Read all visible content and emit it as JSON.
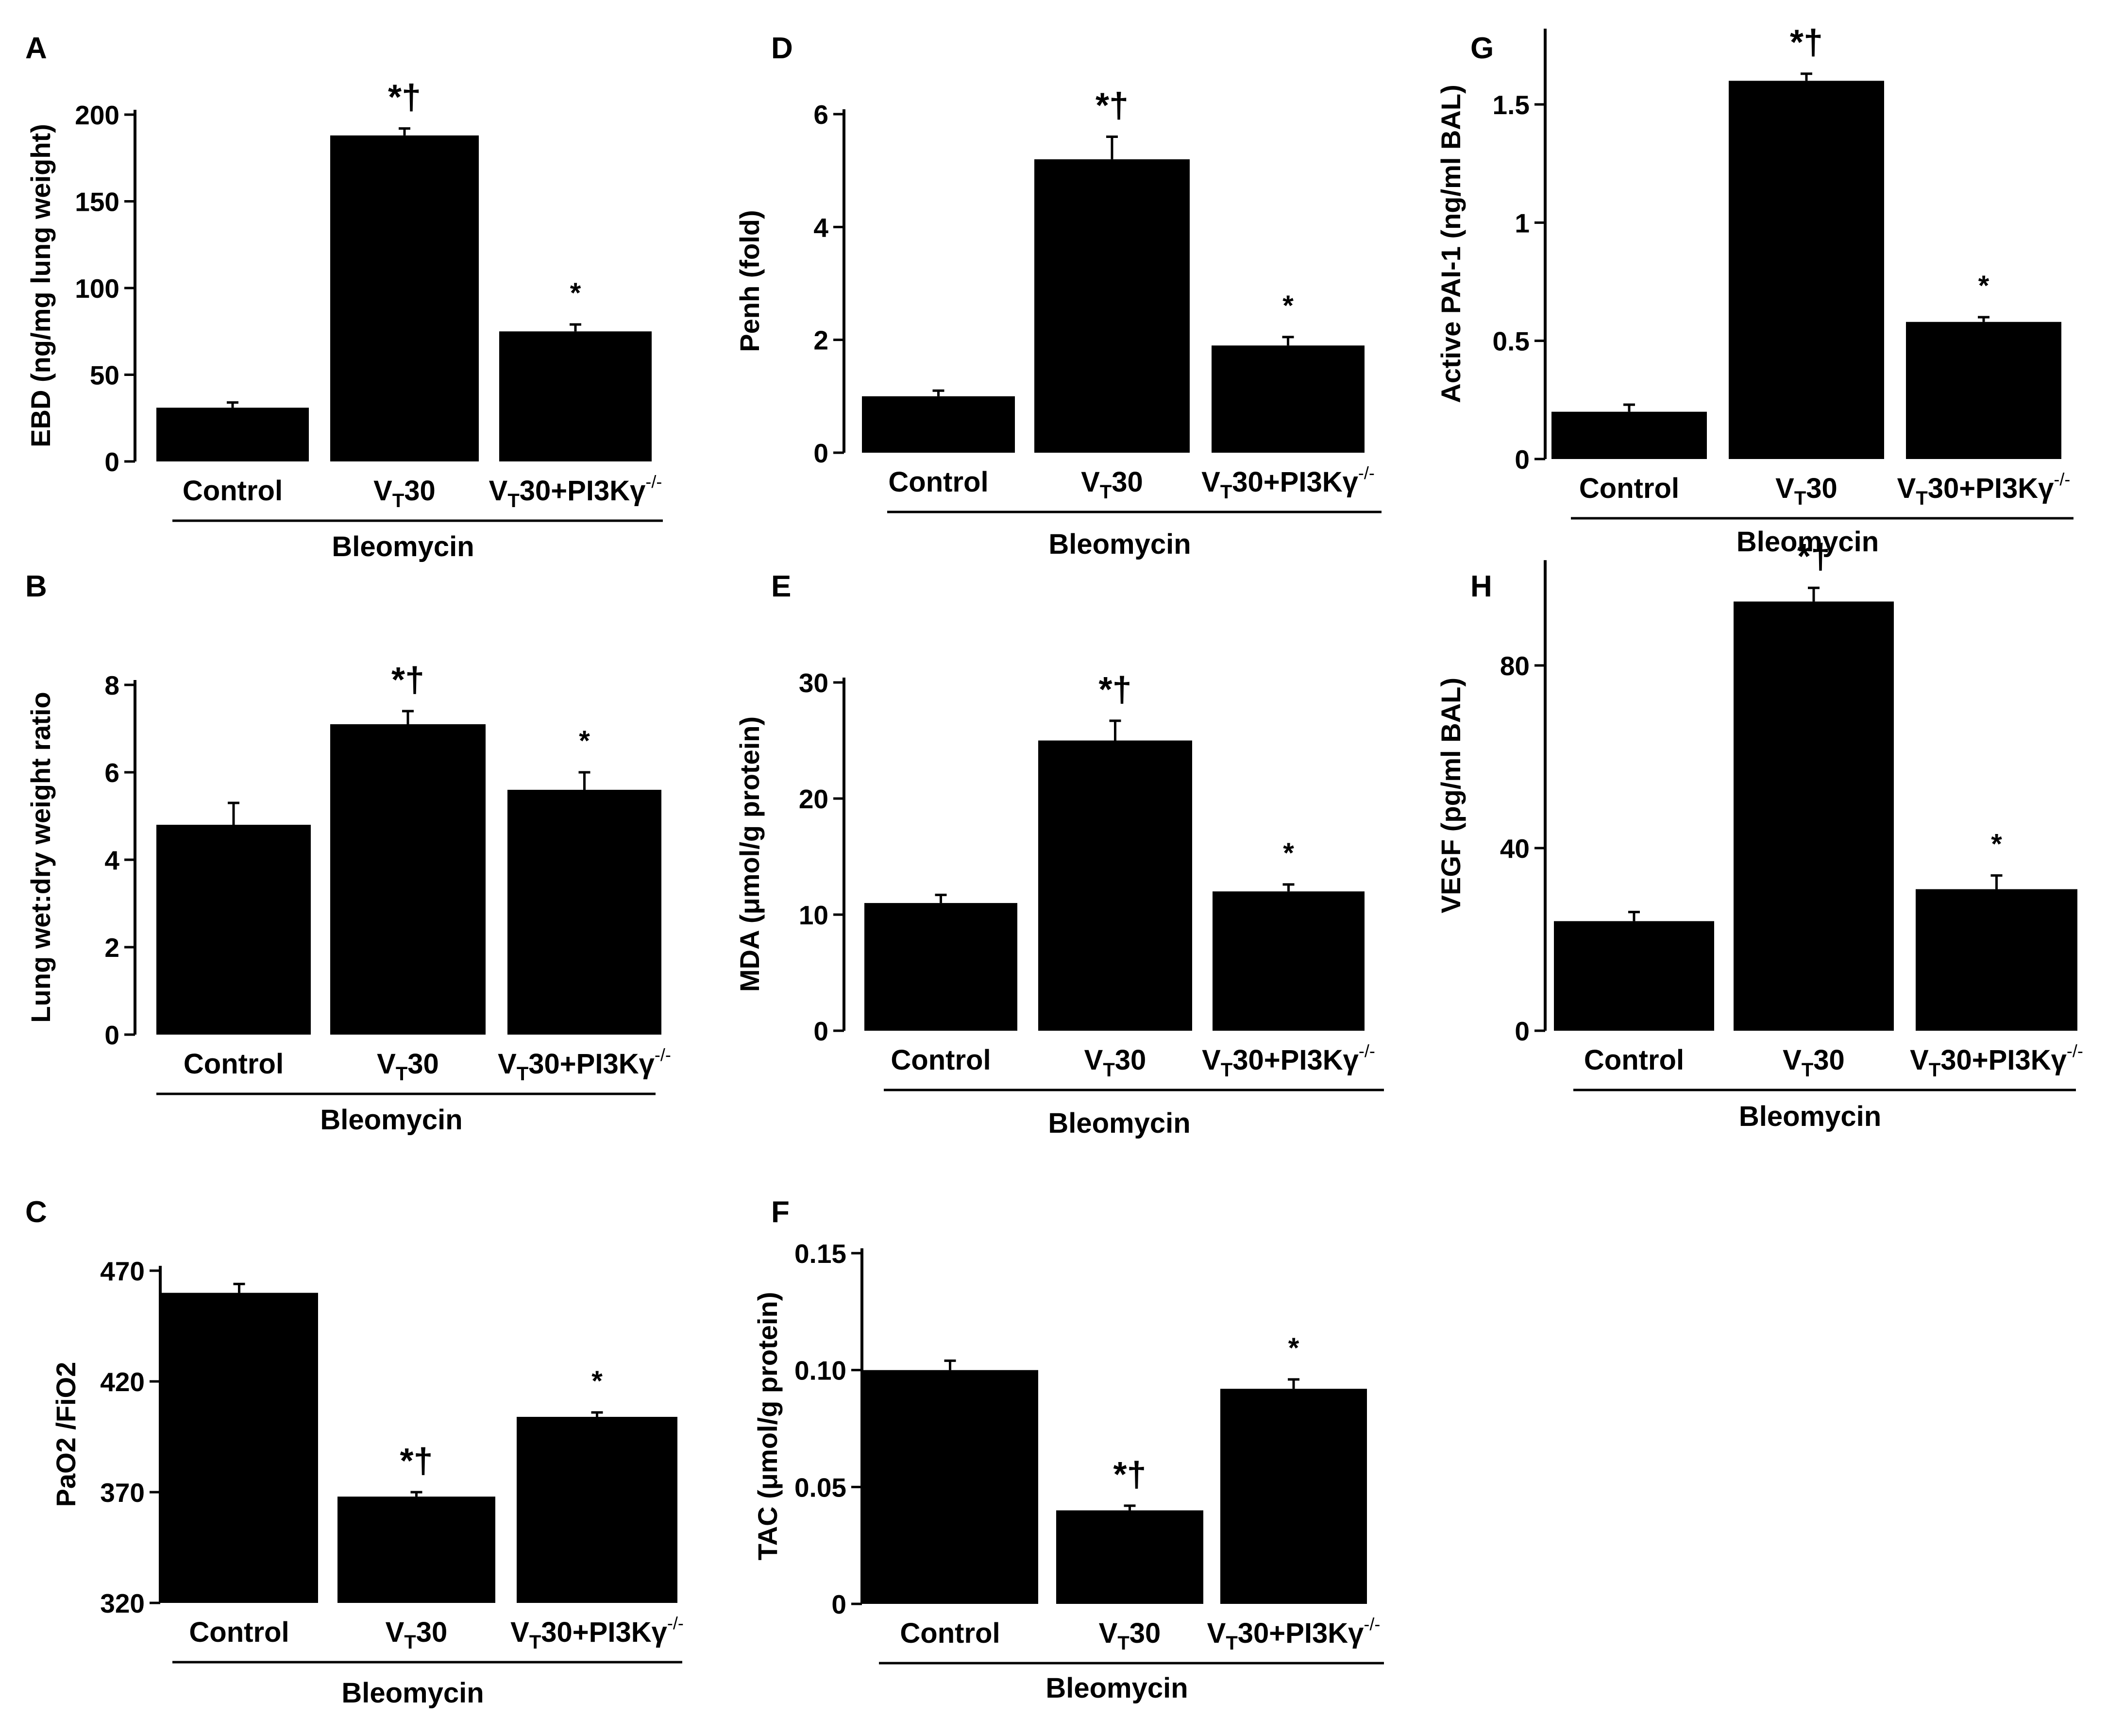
{
  "figure": {
    "colors": {
      "bar": "#000000",
      "axis": "#000000",
      "background": "#ffffff"
    },
    "category_labels": [
      {
        "main": "Control",
        "sub": "",
        "tail": "",
        "sup": ""
      },
      {
        "main": "V",
        "sub": "T",
        "tail": "30",
        "sup": ""
      },
      {
        "main": "V",
        "sub": "T",
        "tail": "30+PI3Kγ",
        "sup": "-/-"
      }
    ],
    "group_label": "Bleomycin"
  },
  "chart_data": [
    {
      "panel": "A",
      "type": "bar",
      "ylabel": "EBD (ng/mg lung weight)",
      "categories": [
        "Control",
        "VT30",
        "VT30+PI3Kγ-/-"
      ],
      "values": [
        31,
        188,
        75
      ],
      "errors": [
        3,
        4,
        4
      ],
      "markers": [
        "",
        "*†",
        "*"
      ],
      "ylim": [
        0,
        200
      ],
      "yticks": [
        0,
        50,
        100,
        150,
        200
      ],
      "ytick_labels": [
        "0",
        "50",
        "100",
        "150",
        "200"
      ],
      "group_label": "Bleomycin"
    },
    {
      "panel": "B",
      "type": "bar",
      "ylabel": "Lung wet:dry weight ratio",
      "categories": [
        "Control",
        "VT30",
        "VT30+PI3Kγ-/-"
      ],
      "values": [
        4.8,
        7.1,
        5.6
      ],
      "errors": [
        0.5,
        0.3,
        0.4
      ],
      "markers": [
        "",
        "*†",
        "*"
      ],
      "ylim": [
        0,
        8
      ],
      "yticks": [
        0,
        2,
        4,
        6,
        8
      ],
      "ytick_labels": [
        "0",
        "2",
        "4",
        "6",
        "8"
      ],
      "group_label": "Bleomycin"
    },
    {
      "panel": "C",
      "type": "bar",
      "ylabel": "PaO2 /FiO2",
      "categories": [
        "Control",
        "VT30",
        "VT30+PI3Kγ-/-"
      ],
      "values": [
        460,
        368,
        404
      ],
      "errors": [
        4,
        2,
        2
      ],
      "markers": [
        "",
        "*†",
        "*"
      ],
      "ylim": [
        320,
        470
      ],
      "yticks": [
        320,
        370,
        420,
        470
      ],
      "ytick_labels": [
        "320",
        "370",
        "420",
        "470"
      ],
      "group_label": "Bleomycin"
    },
    {
      "panel": "D",
      "type": "bar",
      "ylabel": "Penh (fold)",
      "categories": [
        "Control",
        "VT30",
        "VT30+PI3Kγ-/-"
      ],
      "values": [
        1.0,
        5.2,
        1.9
      ],
      "errors": [
        0.1,
        0.4,
        0.15
      ],
      "markers": [
        "",
        "*†",
        "*"
      ],
      "ylim": [
        0,
        6
      ],
      "yticks": [
        0,
        2,
        4,
        6
      ],
      "ytick_labels": [
        "0",
        "2",
        "4",
        "6"
      ],
      "group_label": "Bleomycin"
    },
    {
      "panel": "E",
      "type": "bar",
      "ylabel": "MDA (μmol/g protein)",
      "categories": [
        "Control",
        "VT30",
        "VT30+PI3Kγ-/-"
      ],
      "values": [
        11,
        25,
        12
      ],
      "errors": [
        0.7,
        1.7,
        0.6
      ],
      "markers": [
        "",
        "*†",
        "*"
      ],
      "ylim": [
        0,
        30
      ],
      "yticks": [
        0,
        10,
        20,
        30
      ],
      "ytick_labels": [
        "0",
        "10",
        "20",
        "30"
      ],
      "group_label": "Bleomycin"
    },
    {
      "panel": "F",
      "type": "bar",
      "ylabel": "TAC (μmol/g protein)",
      "categories": [
        "Control",
        "VT30",
        "VT30+PI3Kγ-/-"
      ],
      "values": [
        0.1,
        0.04,
        0.092
      ],
      "errors": [
        0.004,
        0.002,
        0.004
      ],
      "markers": [
        "",
        "*†",
        "*"
      ],
      "ylim": [
        0,
        0.15
      ],
      "yticks": [
        0,
        0.05,
        0.1,
        0.15
      ],
      "ytick_labels": [
        "0",
        "0.05",
        "0.10",
        "0.15"
      ],
      "group_label": "Bleomycin"
    },
    {
      "panel": "G",
      "type": "bar",
      "ylabel": "Active PAI-1 (ng/ml BAL)",
      "categories": [
        "Control",
        "VT30",
        "VT30+PI3Kγ-/-"
      ],
      "values": [
        0.2,
        1.6,
        0.58
      ],
      "errors": [
        0.03,
        0.03,
        0.02
      ],
      "markers": [
        "",
        "*†",
        "*"
      ],
      "ylim": [
        0,
        1.8
      ],
      "yticks": [
        0,
        0.5,
        1,
        1.5
      ],
      "ytick_labels": [
        "0",
        "0.5",
        "1",
        "1.5"
      ],
      "group_label": "Bleomycin"
    },
    {
      "panel": "H",
      "type": "bar",
      "ylabel": "VEGF (pg/ml BAL)",
      "categories": [
        "Control",
        "VT30",
        "VT30+PI3Kγ-/-"
      ],
      "values": [
        24,
        94,
        31
      ],
      "errors": [
        2,
        3,
        3
      ],
      "markers": [
        "",
        "*†",
        "*"
      ],
      "ylim": [
        0,
        102
      ],
      "yticks": [
        0,
        40,
        80
      ],
      "ytick_labels": [
        "0",
        "40",
        "80"
      ],
      "group_label": "Bleomycin"
    }
  ]
}
